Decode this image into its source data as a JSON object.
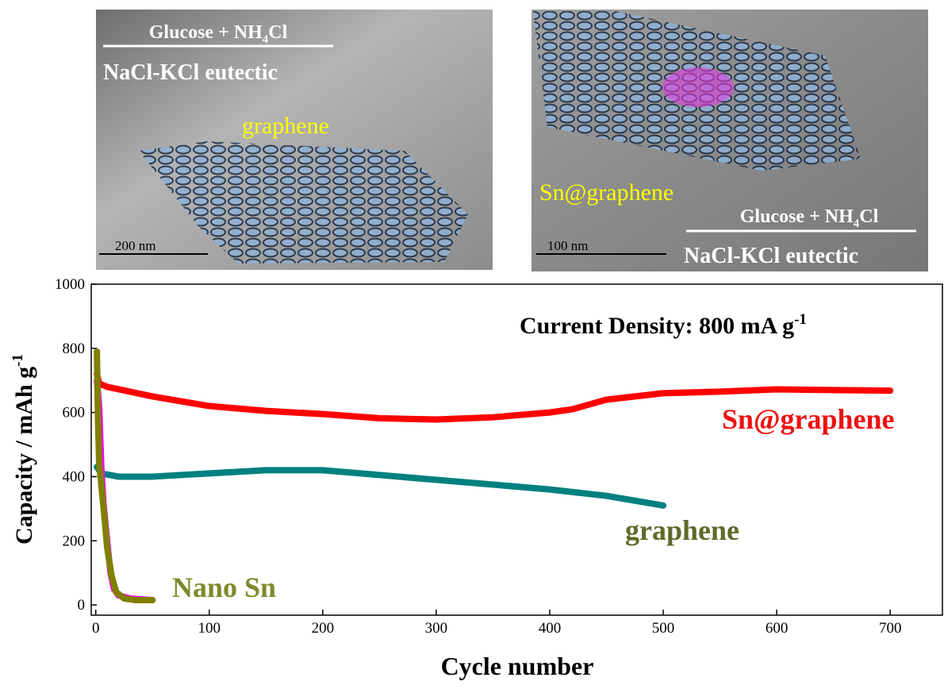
{
  "panels": {
    "left": {
      "precursor": [
        "Glucose + NH",
        "4",
        "Cl"
      ],
      "medium": "NaCl-KCl eutectic",
      "label": "graphene",
      "scale": "200 nm"
    },
    "right": {
      "precursor": [
        "Glucose + NH",
        "4",
        "Cl"
      ],
      "medium": "NaCl-KCl eutectic",
      "label": "Sn@graphene",
      "scale": "100 nm"
    }
  },
  "chart_data": {
    "type": "line",
    "title": [
      "Current Density: 800 mA g",
      "-1"
    ],
    "x_label": "Cycle number",
    "y_label": [
      "Capacity / mAh g",
      "-1"
    ],
    "xlim": [
      -4,
      746
    ],
    "ylim": [
      -32,
      1000
    ],
    "xticks": [
      0,
      100,
      200,
      300,
      400,
      500,
      600,
      700
    ],
    "yticks": [
      0,
      200,
      400,
      600,
      800,
      1000
    ],
    "series": [
      {
        "name": "Sn@graphene",
        "color": "#ff0000",
        "x": [
          1,
          3,
          10,
          50,
          100,
          150,
          200,
          250,
          300,
          350,
          400,
          420,
          450,
          500,
          550,
          600,
          650,
          700
        ],
        "values": [
          720,
          690,
          680,
          650,
          620,
          605,
          595,
          582,
          578,
          585,
          600,
          610,
          640,
          660,
          665,
          672,
          670,
          668
        ]
      },
      {
        "name": "graphene",
        "color": "#008080",
        "x": [
          1,
          5,
          20,
          50,
          100,
          150,
          200,
          250,
          300,
          350,
          400,
          450,
          500
        ],
        "values": [
          430,
          410,
          400,
          400,
          410,
          420,
          420,
          405,
          390,
          375,
          360,
          340,
          310
        ]
      },
      {
        "color": "#ff00ff",
        "x": [
          1,
          3,
          5,
          7,
          10,
          13,
          16,
          20,
          30,
          50
        ],
        "values": [
          700,
          620,
          420,
          310,
          200,
          100,
          50,
          30,
          20,
          15
        ]
      },
      {
        "name": "Nano Sn",
        "color": "#808000",
        "x": [
          1,
          2,
          3,
          5,
          8,
          10,
          14,
          18,
          25,
          35,
          50
        ],
        "values": [
          790,
          570,
          440,
          370,
          260,
          180,
          90,
          40,
          20,
          15,
          15
        ]
      }
    ]
  }
}
